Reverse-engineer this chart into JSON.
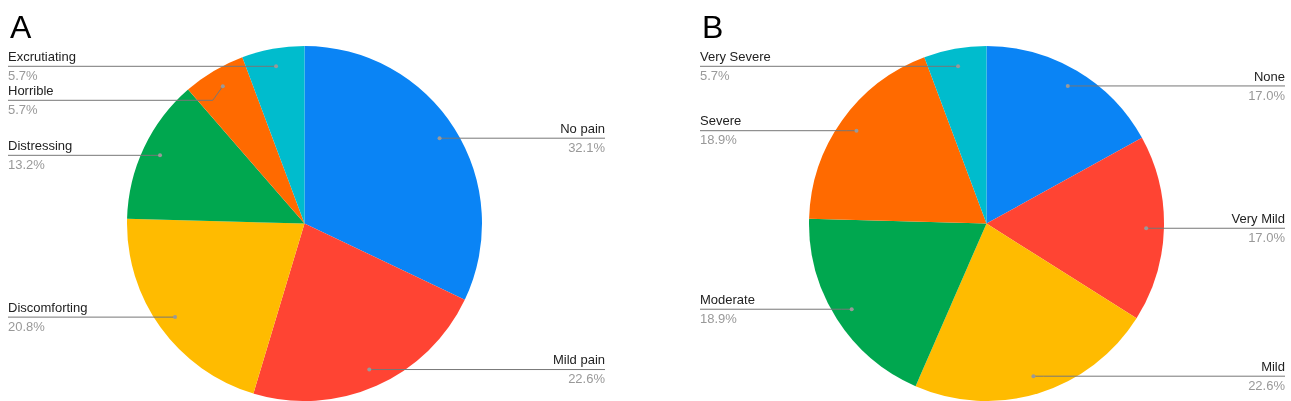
{
  "chart_data": [
    {
      "type": "pie",
      "title": "A",
      "categories": [
        "No pain",
        "Mild pain",
        "Discomforting",
        "Distressing",
        "Horrible",
        "Excrutiating"
      ],
      "values": [
        32.1,
        22.6,
        20.8,
        13.2,
        5.7,
        5.7
      ],
      "value_labels": [
        "32.1%",
        "22.6%",
        "20.8%",
        "13.2%",
        "5.7%",
        "5.7%"
      ],
      "colors": [
        "#0a84f5",
        "#ff4433",
        "#ffbb00",
        "#00a74f",
        "#ff6a00",
        "#00bccd"
      ],
      "legend": false
    },
    {
      "type": "pie",
      "title": "B",
      "categories": [
        "None",
        "Very Mild",
        "Mild",
        "Moderate",
        "Severe",
        "Very Severe"
      ],
      "values": [
        17.0,
        17.0,
        22.6,
        18.9,
        18.9,
        5.7
      ],
      "value_labels": [
        "17.0%",
        "17.0%",
        "22.6%",
        "18.9%",
        "18.9%",
        "5.7%"
      ],
      "colors": [
        "#0a84f5",
        "#ff4433",
        "#ffbb00",
        "#00a74f",
        "#ff6a00",
        "#00bccd"
      ],
      "legend": false
    }
  ]
}
